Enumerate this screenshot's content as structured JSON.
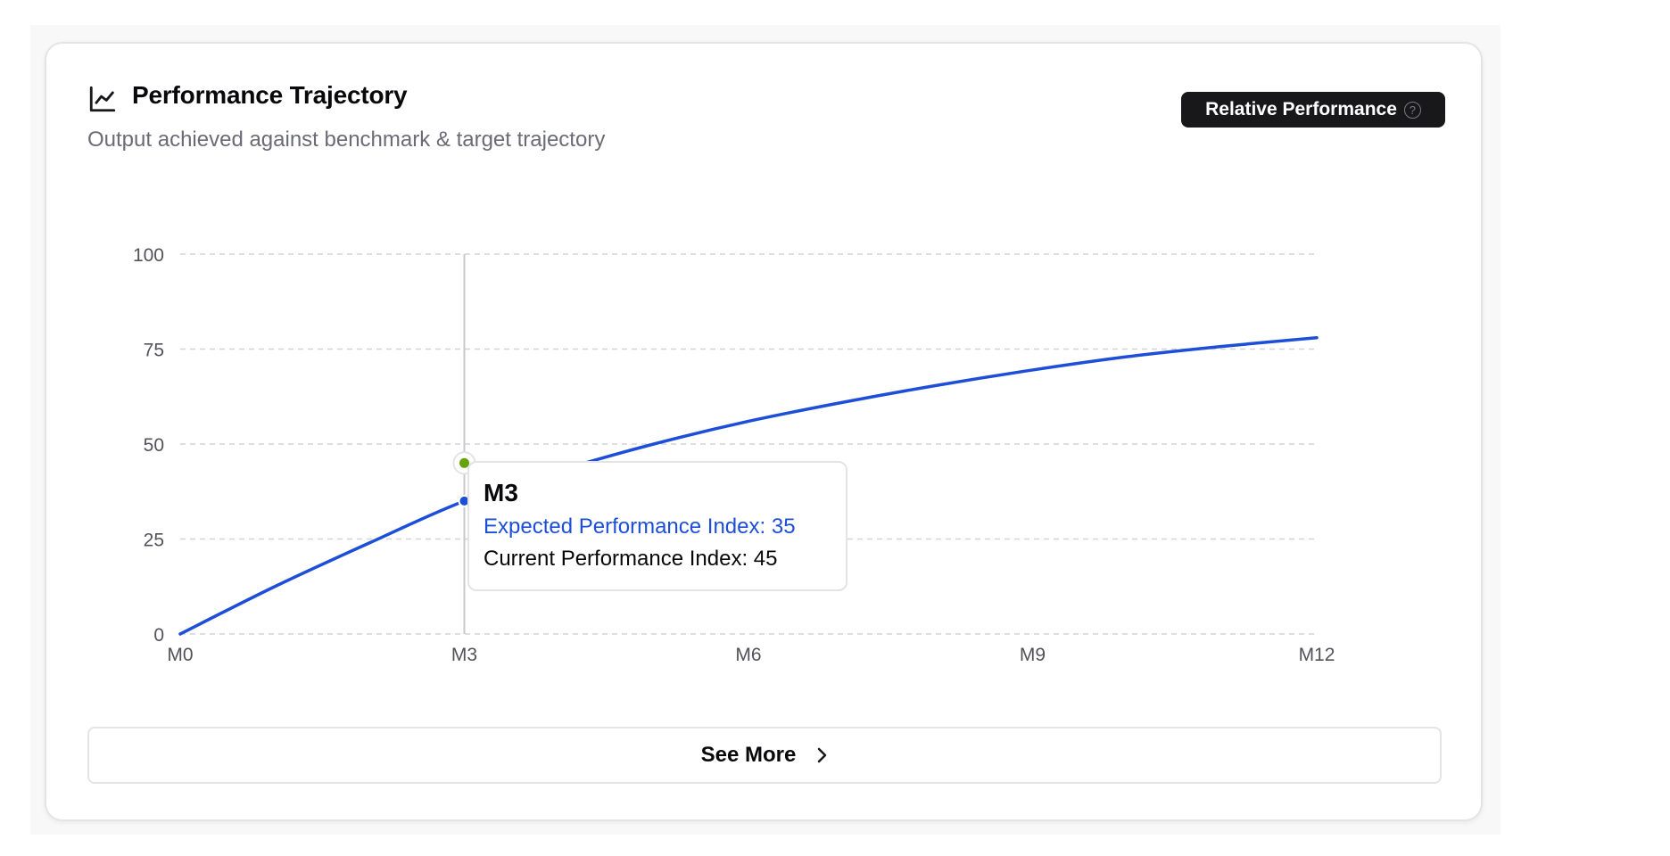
{
  "card": {
    "title": "Performance Trajectory",
    "subtitle": "Output achieved against benchmark & target trajectory",
    "icon": "line-chart-icon"
  },
  "badge": {
    "label": "Relative Performance",
    "icon": "help-circle-icon"
  },
  "tooltip": {
    "title": "M3",
    "expected_label": "Expected Performance Index: 35",
    "current_label": "Current Performance Index: 45"
  },
  "see_more": {
    "label": "See More",
    "icon": "chevron-right-icon"
  },
  "colors": {
    "line": "#1d4ed8",
    "current_point": "#65a30d",
    "grid": "#d4d4d8",
    "axis_text": "#52525b"
  },
  "chart_data": {
    "type": "line",
    "title": "",
    "xlabel": "",
    "ylabel": "",
    "x_ticks": [
      "M0",
      "M3",
      "M6",
      "M9",
      "M12"
    ],
    "y_ticks": [
      0,
      25,
      50,
      75,
      100
    ],
    "xlim": [
      0,
      12
    ],
    "ylim": [
      0,
      100
    ],
    "grid": true,
    "series": [
      {
        "x": [
          0,
          1,
          2,
          3,
          4,
          5,
          6,
          7,
          8,
          9,
          10,
          11,
          12
        ],
        "values": [
          0,
          12.5,
          24,
          35,
          43,
          50,
          56,
          61,
          65.5,
          69.5,
          73,
          75.7,
          78
        ],
        "color": "#1d4ed8"
      }
    ],
    "highlight": {
      "x_label": "M3",
      "x": 3,
      "expected": 35,
      "current": 45
    }
  }
}
